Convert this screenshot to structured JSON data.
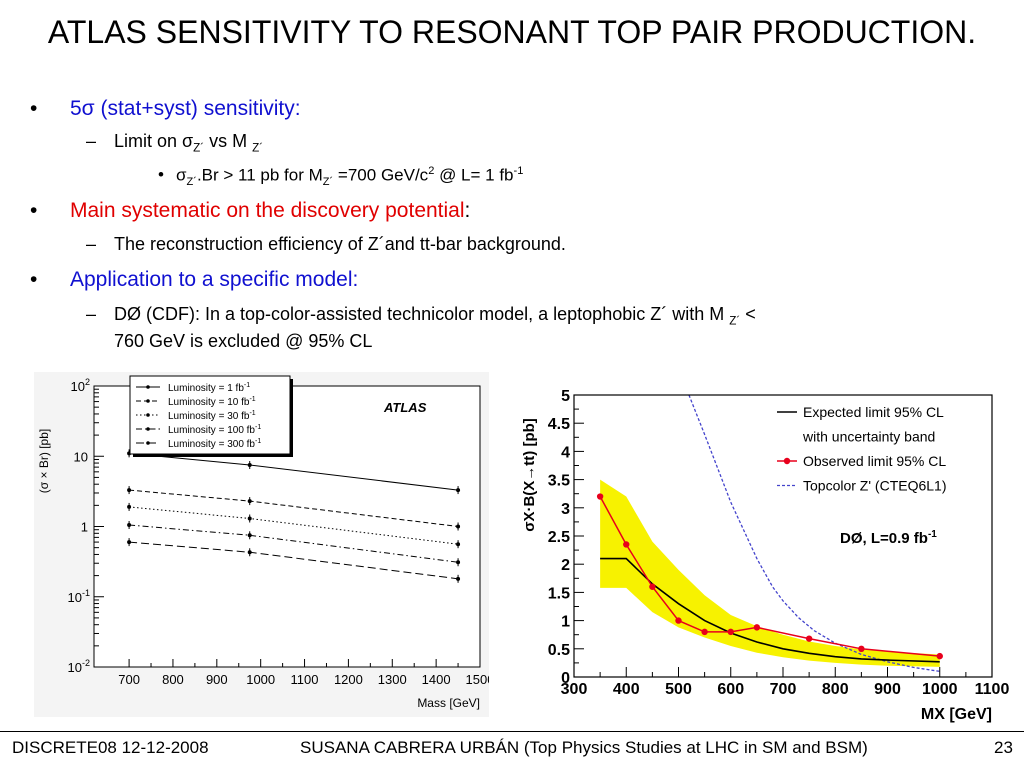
{
  "slide": {
    "title": "ATLAS SENSITIVITY TO RESONANT TOP PAIR PRODUCTION.",
    "bullet1": "5σ (stat+syst) sensitivity:",
    "b1_sub1_pre": "Limit on σ",
    "b1_sub1_sub": "Z´",
    "b1_sub1_mid": " vs M ",
    "b1_sub1_sub2": "Z´",
    "b1_sub2_a": "σ",
    "b1_sub2_sub": "Z´",
    "b1_sub2_b": ".Br > 11 pb for M",
    "b1_sub2_sub2": "Z´",
    "b1_sub2_c": " =700 GeV/c",
    "b1_sub2_sup": "2",
    "b1_sub2_d": " @ L= 1 fb",
    "b1_sub2_sup2": "-1",
    "bullet2": "Main systematic on the discovery potential",
    "bullet2_colon": ":",
    "b2_sub1": "The reconstruction efficiency of Z´and tt-bar background.",
    "bullet3": "Application to a specific model",
    "bullet3_colon": ":",
    "b3_sub1_a": "DØ (CDF):  In a top-color-assisted technicolor model, a leptophobic Z´ with M ",
    "b3_sub1_sub": "Z´",
    "b3_sub1_b": " <",
    "b3_sub1_line2": "760 GeV is excluded @ 95% CL",
    "bullet_dot": "•",
    "dash": "–"
  },
  "footer": {
    "left": "DISCRETE08 12-12-2008",
    "center": "SUSANA CABRERA URBÁN (Top Physics Studies at LHC in SM and BSM)",
    "page": "23"
  },
  "chart_data": [
    {
      "type": "line",
      "title": "ATLAS",
      "xlabel": "Mass [GeV]",
      "ylabel": "(σ × Br) [pb]",
      "xlim": [
        620,
        1500
      ],
      "ylim": [
        0.01,
        100
      ],
      "yscale": "log",
      "xticks": [
        "700",
        "800",
        "900",
        "1000",
        "1100",
        "1200",
        "1300",
        "1400",
        "1500"
      ],
      "yticks": [
        "10^-2",
        "10^-1",
        "1",
        "10",
        "10^2"
      ],
      "legend_position": "top-left",
      "x": [
        700,
        975,
        1450
      ],
      "series": [
        {
          "name": "Luminosity = 1 fb-1",
          "values": [
            11,
            7.5,
            3.3
          ]
        },
        {
          "name": "Luminosity = 10 fb-1",
          "values": [
            3.3,
            2.3,
            1.0
          ]
        },
        {
          "name": "Luminosity = 30 fb-1",
          "values": [
            1.9,
            1.3,
            0.56
          ]
        },
        {
          "name": "Luminosity = 100 fb-1",
          "values": [
            1.05,
            0.75,
            0.31
          ]
        },
        {
          "name": "Luminosity = 300 fb-1",
          "values": [
            0.6,
            0.43,
            0.18
          ]
        }
      ]
    },
    {
      "type": "line",
      "title": "DØ, L=0.9 fb-1",
      "xlabel": "MX [GeV]",
      "ylabel": "σX·B(X→tt)  [pb]",
      "xlim": [
        300,
        1100
      ],
      "ylim": [
        0,
        5
      ],
      "xticks": [
        "300",
        "400",
        "500",
        "600",
        "700",
        "800",
        "900",
        "1000",
        "1100"
      ],
      "yticks": [
        "0",
        "0.5",
        "1",
        "1.5",
        "2",
        "2.5",
        "3",
        "3.5",
        "4",
        "4.5",
        "5"
      ],
      "legend": [
        "Expected limit 95% CL",
        "with uncertainty band",
        "Observed limit 95% CL",
        "Topcolor Z'  (CTEQ6L1)"
      ],
      "legend_position": "top-right",
      "colors": {
        "observed": "#e8001c",
        "expected": "#000000",
        "band": "#f7f200",
        "topcolor": "#4444cc"
      },
      "observed": {
        "x": [
          350,
          400,
          450,
          500,
          550,
          600,
          650,
          750,
          850,
          1000
        ],
        "y": [
          3.2,
          2.35,
          1.6,
          1.0,
          0.8,
          0.8,
          0.88,
          0.68,
          0.5,
          0.37
        ]
      },
      "expected": {
        "x": [
          350,
          400,
          450,
          500,
          550,
          600,
          650,
          700,
          750,
          800,
          850,
          900,
          1000
        ],
        "y": [
          2.1,
          2.1,
          1.65,
          1.3,
          1.0,
          0.78,
          0.62,
          0.5,
          0.42,
          0.36,
          0.32,
          0.3,
          0.27
        ]
      },
      "band_upper": {
        "x": [
          350,
          400,
          450,
          500,
          550,
          600,
          650,
          700,
          750,
          800,
          850,
          900,
          1000
        ],
        "y": [
          3.5,
          3.2,
          2.4,
          1.9,
          1.45,
          1.1,
          0.9,
          0.75,
          0.63,
          0.55,
          0.49,
          0.45,
          0.4
        ]
      },
      "band_lower": {
        "x": [
          350,
          400,
          450,
          500,
          550,
          600,
          650,
          700,
          750,
          800,
          850,
          900,
          1000
        ],
        "y": [
          1.58,
          1.58,
          1.15,
          0.88,
          0.7,
          0.55,
          0.43,
          0.35,
          0.29,
          0.25,
          0.22,
          0.2,
          0.18
        ]
      },
      "topcolor": {
        "x": [
          520,
          550,
          575,
          600,
          625,
          650,
          680,
          700,
          730,
          760,
          800,
          850,
          900,
          950,
          1000
        ],
        "y": [
          5.0,
          4.3,
          3.7,
          3.1,
          2.6,
          2.1,
          1.6,
          1.35,
          1.05,
          0.82,
          0.6,
          0.4,
          0.27,
          0.17,
          0.1
        ]
      }
    }
  ]
}
